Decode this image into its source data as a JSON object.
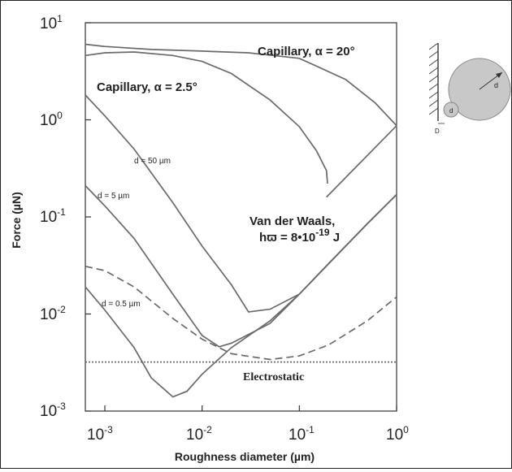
{
  "chart_data": {
    "type": "line",
    "xlabel": "Roughness diameter (µm)",
    "ylabel": "Force (µN)",
    "x_scale": "log",
    "y_scale": "log",
    "xlim": [
      0.00063,
      1
    ],
    "ylim": [
      0.001,
      10
    ],
    "grid": false,
    "x_ticks": [
      {
        "base": "10",
        "exp": "-3",
        "value": 0.001
      },
      {
        "base": "10",
        "exp": "-2",
        "value": 0.01
      },
      {
        "base": "10",
        "exp": "-1",
        "value": 0.1
      },
      {
        "base": "10",
        "exp": "0",
        "value": 1
      }
    ],
    "y_ticks": [
      {
        "base": "10",
        "exp": "1",
        "value": 10
      },
      {
        "base": "10",
        "exp": "0",
        "value": 1
      },
      {
        "base": "10",
        "exp": "-1",
        "value": 0.1
      },
      {
        "base": "10",
        "exp": "-2",
        "value": 0.01
      },
      {
        "base": "10",
        "exp": "-3",
        "value": 0.001
      }
    ],
    "series": [
      {
        "key": "cap20",
        "style": "solid",
        "points": [
          [
            0.00063,
            6.0
          ],
          [
            0.001,
            5.7
          ],
          [
            0.003,
            5.3
          ],
          [
            0.01,
            5.1
          ],
          [
            0.03,
            4.9
          ],
          [
            0.1,
            4.3
          ],
          [
            0.3,
            2.6
          ],
          [
            0.6,
            1.5
          ],
          [
            1.0,
            0.87
          ]
        ]
      },
      {
        "key": "cap2_5",
        "style": "solid",
        "points": [
          [
            0.00063,
            4.6
          ],
          [
            0.001,
            4.9
          ],
          [
            0.002,
            5.0
          ],
          [
            0.005,
            4.6
          ],
          [
            0.01,
            4.0
          ],
          [
            0.02,
            3.0
          ],
          [
            0.05,
            1.6
          ],
          [
            0.1,
            0.85
          ],
          [
            0.15,
            0.48
          ],
          [
            0.19,
            0.3
          ],
          [
            0.195,
            0.22
          ]
        ]
      },
      {
        "key": "cap_branch",
        "style": "solid",
        "points": [
          [
            0.19,
            0.16
          ],
          [
            1.0,
            0.87
          ]
        ]
      },
      {
        "key": "vdw_50",
        "style": "solid",
        "points": [
          [
            0.00063,
            1.8
          ],
          [
            0.001,
            1.1
          ],
          [
            0.002,
            0.5
          ],
          [
            0.005,
            0.14
          ],
          [
            0.01,
            0.05
          ],
          [
            0.02,
            0.02
          ],
          [
            0.03,
            0.0105
          ],
          [
            0.05,
            0.0112
          ],
          [
            0.1,
            0.016
          ],
          [
            0.2,
            0.033
          ],
          [
            0.5,
            0.085
          ],
          [
            1.0,
            0.17
          ]
        ]
      },
      {
        "key": "vdw_5",
        "style": "solid",
        "points": [
          [
            0.00063,
            0.21
          ],
          [
            0.001,
            0.13
          ],
          [
            0.002,
            0.06
          ],
          [
            0.005,
            0.016
          ],
          [
            0.01,
            0.006
          ],
          [
            0.015,
            0.0046
          ],
          [
            0.02,
            0.005
          ],
          [
            0.05,
            0.008
          ],
          [
            0.1,
            0.016
          ],
          [
            0.2,
            0.033
          ],
          [
            0.5,
            0.085
          ],
          [
            1.0,
            0.17
          ]
        ]
      },
      {
        "key": "vdw_0_5",
        "style": "solid",
        "points": [
          [
            0.00063,
            0.019
          ],
          [
            0.001,
            0.011
          ],
          [
            0.002,
            0.0045
          ],
          [
            0.003,
            0.0022
          ],
          [
            0.005,
            0.0014
          ],
          [
            0.007,
            0.0016
          ],
          [
            0.01,
            0.0024
          ],
          [
            0.02,
            0.0045
          ],
          [
            0.05,
            0.0085
          ],
          [
            0.1,
            0.016
          ],
          [
            0.2,
            0.033
          ],
          [
            0.5,
            0.085
          ],
          [
            1.0,
            0.17
          ]
        ]
      },
      {
        "key": "dashed",
        "style": "dashed",
        "points": [
          [
            0.00063,
            0.031
          ],
          [
            0.001,
            0.028
          ],
          [
            0.002,
            0.019
          ],
          [
            0.005,
            0.009
          ],
          [
            0.01,
            0.0055
          ],
          [
            0.02,
            0.0039
          ],
          [
            0.05,
            0.0034
          ],
          [
            0.1,
            0.0037
          ],
          [
            0.2,
            0.0048
          ],
          [
            0.5,
            0.0085
          ],
          [
            1.0,
            0.015
          ]
        ]
      },
      {
        "key": "electrostatic",
        "style": "dotted",
        "points": [
          [
            0.00063,
            0.0032
          ],
          [
            1.0,
            0.0032
          ]
        ]
      }
    ],
    "annotations": {
      "cap20_label": "Capillary, α = 20°",
      "cap2_5_label": "Capillary, α = 2.5°",
      "d50_label": "d = 50 µm",
      "d5_label": "d = 5 µm",
      "d0_5_label": "d = 0.5 µm",
      "vdw_line1": "Van der Waals,",
      "vdw_line2_prefix": "hϖ = 8•10",
      "vdw_line2_exp": "-19",
      "vdw_line2_suffix": " J",
      "electrostatic_label": "Electrostatic"
    },
    "inset": {
      "d_label": "d",
      "d_label_2": "d",
      "D_label": "D"
    }
  }
}
